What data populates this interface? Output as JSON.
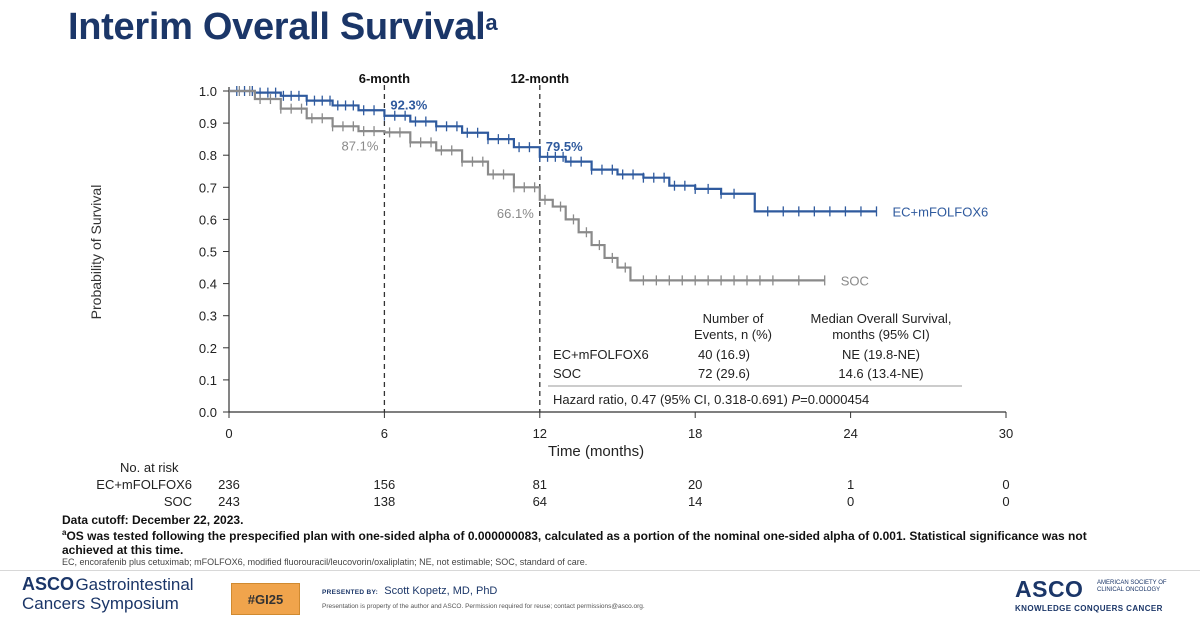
{
  "title": {
    "text": "Interim Overall Survival",
    "superscript": "a"
  },
  "chart_data": {
    "type": "line",
    "xlabel": "Time (months)",
    "ylabel": "Probability of Survival",
    "xlim": [
      0,
      30
    ],
    "ylim": [
      0,
      1.0
    ],
    "x_ticks": [
      0,
      6,
      12,
      18,
      24,
      30
    ],
    "y_ticks": [
      0.0,
      0.1,
      0.2,
      0.3,
      0.4,
      0.5,
      0.6,
      0.7,
      0.8,
      0.9,
      1.0
    ],
    "reference_lines": [
      {
        "x": 6,
        "label": "6-month"
      },
      {
        "x": 12,
        "label": "12-month"
      }
    ],
    "series": [
      {
        "name": "EC+mFOLFOX6",
        "color": "#2f5a9e",
        "step": [
          [
            0,
            1.0
          ],
          [
            1,
            0.995
          ],
          [
            2,
            0.985
          ],
          [
            3,
            0.97
          ],
          [
            4,
            0.955
          ],
          [
            5,
            0.94
          ],
          [
            6,
            0.923
          ],
          [
            7,
            0.905
          ],
          [
            8,
            0.89
          ],
          [
            9,
            0.87
          ],
          [
            10,
            0.85
          ],
          [
            11,
            0.825
          ],
          [
            12,
            0.795
          ],
          [
            13,
            0.78
          ],
          [
            14,
            0.755
          ],
          [
            15,
            0.74
          ],
          [
            16,
            0.73
          ],
          [
            17,
            0.705
          ],
          [
            18,
            0.695
          ],
          [
            19,
            0.68
          ],
          [
            20,
            0.68
          ],
          [
            20.3,
            0.625
          ],
          [
            25.0,
            0.625
          ]
        ],
        "censor_x": [
          0.3,
          0.6,
          0.9,
          1.2,
          1.5,
          1.8,
          2.1,
          2.4,
          2.7,
          3.0,
          3.3,
          3.6,
          3.9,
          4.2,
          4.5,
          4.8,
          5.2,
          5.6,
          6.0,
          6.4,
          6.8,
          7.2,
          7.6,
          8.0,
          8.4,
          8.8,
          9.2,
          9.6,
          10.0,
          10.4,
          10.8,
          11.2,
          11.6,
          12.0,
          12.3,
          12.6,
          12.9,
          13.2,
          13.6,
          14.0,
          14.4,
          14.8,
          15.2,
          15.6,
          16.0,
          16.4,
          16.8,
          17.2,
          17.6,
          18.0,
          18.5,
          19.0,
          19.5,
          20.8,
          21.4,
          22.0,
          22.6,
          23.2,
          23.8,
          24.4,
          25.0
        ],
        "annotations": [
          {
            "x": 6,
            "label": "92.3%"
          },
          {
            "x": 12,
            "label": "79.5%"
          }
        ],
        "end_label": "EC+mFOLFOX6"
      },
      {
        "name": "SOC",
        "color": "#8a8a8a",
        "step": [
          [
            0,
            1.0
          ],
          [
            1,
            0.975
          ],
          [
            2,
            0.945
          ],
          [
            3,
            0.915
          ],
          [
            4,
            0.89
          ],
          [
            5,
            0.875
          ],
          [
            6,
            0.871
          ],
          [
            7,
            0.84
          ],
          [
            8,
            0.815
          ],
          [
            9,
            0.78
          ],
          [
            10,
            0.74
          ],
          [
            11,
            0.7
          ],
          [
            12,
            0.661
          ],
          [
            12.5,
            0.64
          ],
          [
            13,
            0.6
          ],
          [
            13.5,
            0.56
          ],
          [
            14,
            0.52
          ],
          [
            14.5,
            0.48
          ],
          [
            15,
            0.45
          ],
          [
            15.5,
            0.41
          ],
          [
            23.0,
            0.41
          ]
        ],
        "censor_x": [
          0.4,
          0.8,
          1.2,
          1.6,
          2.0,
          2.4,
          2.8,
          3.2,
          3.6,
          4.0,
          4.4,
          4.8,
          5.2,
          5.6,
          6.2,
          6.6,
          7.0,
          7.4,
          7.8,
          8.2,
          8.6,
          9.0,
          9.4,
          9.8,
          10.2,
          10.6,
          11.0,
          11.4,
          11.8,
          12.2,
          12.8,
          13.3,
          13.8,
          14.3,
          14.8,
          15.3,
          16.0,
          16.5,
          17.0,
          17.5,
          18.0,
          18.5,
          19.0,
          19.5,
          20.0,
          20.5,
          21.0,
          22.0,
          23.0
        ],
        "annotations": [
          {
            "x": 6,
            "label": "87.1%"
          },
          {
            "x": 12,
            "label": "66.1%"
          }
        ],
        "end_label": "SOC"
      }
    ],
    "stats_table": {
      "header_events": [
        "Number of",
        "Events, n (%)"
      ],
      "header_median": [
        "Median Overall Survival,",
        "months (95% CI)"
      ],
      "rows": [
        {
          "arm": "EC+mFOLFOX6",
          "events": "40 (16.9)",
          "median": "NE (19.8-NE)"
        },
        {
          "arm": "SOC",
          "events": "72 (29.6)",
          "median": "14.6 (13.4-NE)"
        }
      ],
      "hazard_ratio_prefix": "Hazard ratio, 0.47 (95% CI, 0.318-0.691) ",
      "p_label": "P",
      "p_value": "=0.0000454"
    }
  },
  "at_risk": {
    "title": "No. at risk",
    "times": [
      0,
      6,
      12,
      18,
      24,
      30
    ],
    "rows": [
      {
        "label": "EC+mFOLFOX6",
        "values": [
          "236",
          "156",
          "81",
          "20",
          "1",
          "0"
        ]
      },
      {
        "label": "SOC",
        "values": [
          "243",
          "138",
          "64",
          "14",
          "0",
          "0"
        ]
      }
    ]
  },
  "footnotes": {
    "cutoff": "Data cutoff: December 22, 2023.",
    "a_mark": "a",
    "a_line1": "OS was tested following the prespecified plan with one-sided alpha of 0.000000083, calculated as a portion of the nominal one-sided alpha of 0.001. Statistical significance was not",
    "a_line2": "achieved at this time.",
    "abbreviations": "EC, encorafenib plus cetuximab; mFOLFOX6, modified fluorouracil/leucovorin/oxaliplatin; NE, not estimable; SOC, standard of care."
  },
  "footer": {
    "symposium_brand": "ASCO",
    "symposium_line1": "Gastrointestinal",
    "symposium_line2": "Cancers Symposium",
    "hashtag": "#GI25",
    "presented_by_label": "PRESENTED BY:",
    "presenter": "Scott Kopetz, MD, PhD",
    "property_note": "Presentation is property of the author and ASCO. Permission required for reuse; contact permissions@asco.org.",
    "asco_logo": "ASCO",
    "asco_society": [
      "AMERICAN SOCIETY OF",
      "CLINICAL ONCOLOGY"
    ],
    "asco_tagline": "KNOWLEDGE CONQUERS CANCER"
  }
}
